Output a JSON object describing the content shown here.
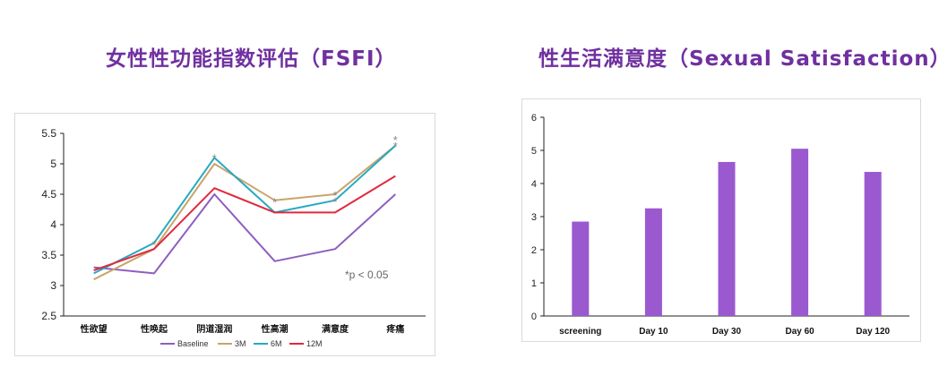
{
  "titles": {
    "fsfi": "女性性功能指数评估（FSFI）",
    "satisfaction": "性生活满意度（Sexual Satisfaction）"
  },
  "chart_data": [
    {
      "type": "line",
      "title": "女性性功能指数评估（FSFI）",
      "categories": [
        "性欲望",
        "性唤起",
        "阴道湿润",
        "性高潮",
        "满意度",
        "疼痛"
      ],
      "ylim": [
        2.5,
        5.5
      ],
      "yticks": [
        "2.5",
        "3",
        "3.5",
        "4",
        "4.5",
        "5",
        "5.5"
      ],
      "series": [
        {
          "name": "Baseline",
          "color": "#8e5fbf",
          "values": [
            3.3,
            3.2,
            4.5,
            3.4,
            3.6,
            4.5
          ]
        },
        {
          "name": "3M",
          "color": "#c9a46b",
          "values": [
            3.1,
            3.6,
            5.0,
            4.4,
            4.5,
            5.3
          ]
        },
        {
          "name": "6M",
          "color": "#27a9c2",
          "values": [
            3.2,
            3.7,
            5.1,
            4.2,
            4.4,
            5.3
          ]
        },
        {
          "name": "12M",
          "color": "#e02a3d",
          "values": [
            3.25,
            3.6,
            4.6,
            4.2,
            4.2,
            4.8
          ]
        }
      ],
      "significance": [
        {
          "category_index": 1,
          "y": 3.72,
          "label": "*"
        },
        {
          "category_index": 2,
          "y": 5.14,
          "label": "*"
        },
        {
          "category_index": 3,
          "y": 4.42,
          "label": "*"
        },
        {
          "category_index": 4,
          "y": 4.53,
          "label": "*"
        },
        {
          "category_index": 4,
          "y": 4.43,
          "label": "*"
        },
        {
          "category_index": 5,
          "y": 5.44,
          "label": "*"
        },
        {
          "category_index": 5,
          "y": 5.34,
          "label": "*"
        }
      ],
      "annotation": "*p < 0.05",
      "legend": "bottom"
    },
    {
      "type": "bar",
      "title": "性生活满意度（Sexual Satisfaction）",
      "categories": [
        "screening",
        "Day 10",
        "Day 30",
        "Day 60",
        "Day 120"
      ],
      "values": [
        2.85,
        3.25,
        4.65,
        5.05,
        4.35
      ],
      "color": "#9b59d0",
      "ylim": [
        0,
        6
      ],
      "yticks": [
        "0",
        "1",
        "2",
        "3",
        "4",
        "5",
        "6"
      ]
    }
  ]
}
